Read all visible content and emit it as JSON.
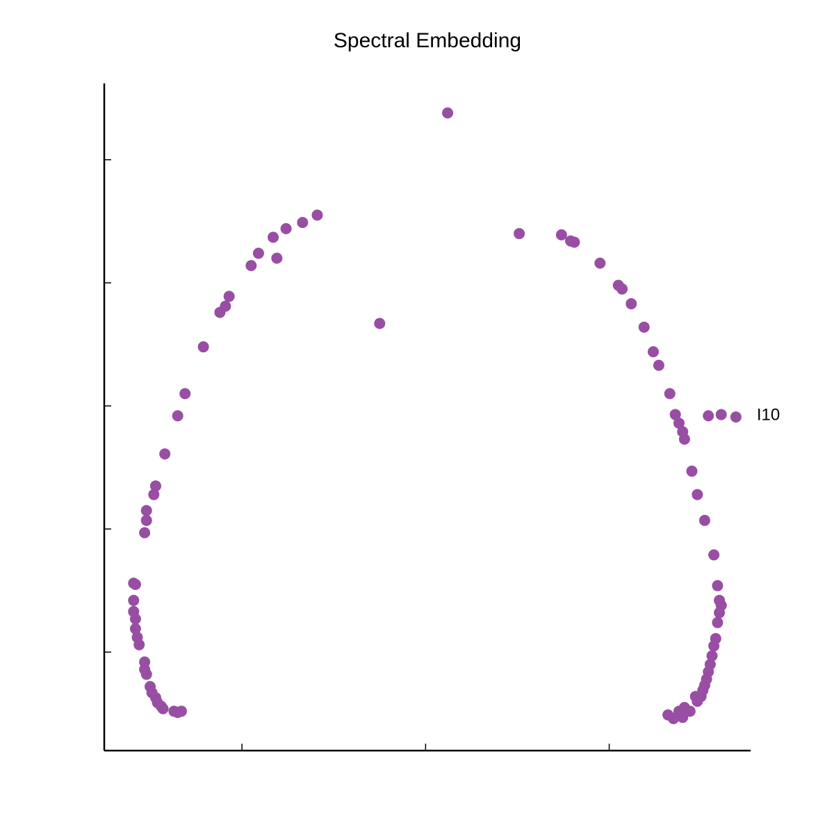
{
  "chart_data": {
    "type": "scatter",
    "title": "Spectral Embedding",
    "color": "#984ea3",
    "x": [
      0.12,
      -0.59,
      -0.67,
      -0.76,
      -0.83,
      -0.91,
      -0.81,
      -0.95,
      -1.07,
      -1.09,
      -1.12,
      -1.21,
      -1.31,
      -1.35,
      -1.42,
      -1.47,
      -1.48,
      -1.52,
      -1.52,
      -1.53,
      -1.59,
      -1.58,
      -1.59,
      -1.59,
      -1.58,
      -1.58,
      -1.57,
      -1.56,
      -1.53,
      -1.53,
      -1.52,
      -1.5,
      -1.49,
      -1.47,
      -1.46,
      -1.44,
      -1.43,
      -1.37,
      -1.35,
      -1.33,
      -0.25,
      0.51,
      0.74,
      0.79,
      0.81,
      0.95,
      1.05,
      1.07,
      1.12,
      1.19,
      1.24,
      1.27,
      1.33,
      1.36,
      1.38,
      1.4,
      1.41,
      1.45,
      1.48,
      1.52,
      1.57,
      1.59,
      1.6,
      1.61,
      1.6,
      1.59,
      1.58,
      1.57,
      1.56,
      1.55,
      1.54,
      1.53,
      1.52,
      1.51,
      1.5,
      1.47,
      1.48,
      1.44,
      1.41,
      1.4,
      1.38,
      1.35,
      1.32,
      1.38,
      1.54,
      1.61,
      1.69
    ],
    "y": [
      2.38,
      1.55,
      1.49,
      1.44,
      1.37,
      1.24,
      1.2,
      1.14,
      0.89,
      0.81,
      0.76,
      0.48,
      0.1,
      -0.08,
      -0.39,
      -0.65,
      -0.72,
      -0.85,
      -0.93,
      -1.03,
      -1.44,
      -1.45,
      -1.58,
      -1.67,
      -1.73,
      -1.81,
      -1.88,
      -1.94,
      -2.08,
      -2.14,
      -2.18,
      -2.28,
      -2.33,
      -2.37,
      -2.41,
      -2.44,
      -2.46,
      -2.48,
      -2.49,
      -2.48,
      0.67,
      1.4,
      1.39,
      1.34,
      1.33,
      1.16,
      0.98,
      0.95,
      0.83,
      0.64,
      0.44,
      0.33,
      0.1,
      -0.07,
      -0.14,
      -0.21,
      -0.27,
      -0.53,
      -0.72,
      -0.93,
      -1.21,
      -1.46,
      -1.58,
      -1.62,
      -1.68,
      -1.76,
      -1.89,
      -1.95,
      -2.03,
      -2.1,
      -2.16,
      -2.22,
      -2.27,
      -2.31,
      -2.36,
      -2.36,
      -2.4,
      -2.48,
      -2.45,
      -2.53,
      -2.48,
      -2.54,
      -2.51,
      -2.49,
      -0.08,
      -0.07,
      -0.09
    ],
    "annotations": [
      {
        "text": "I10",
        "x": 1.69,
        "y": -0.09
      }
    ],
    "xlim": [
      -1.75,
      1.77
    ],
    "ylim": [
      -2.8,
      2.62
    ],
    "xticks": [
      -1,
      0,
      1
    ],
    "yticks": [
      -2,
      -1,
      0,
      1,
      2
    ],
    "tick_labels": false,
    "grid": false
  }
}
